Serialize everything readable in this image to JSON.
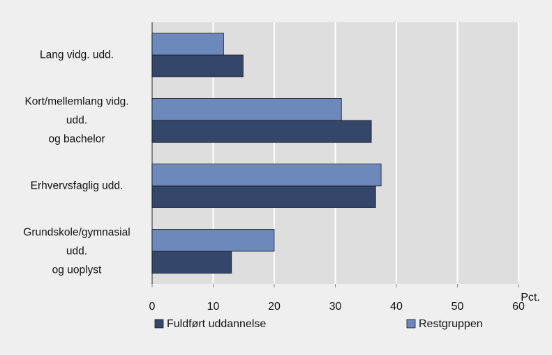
{
  "chart_data": {
    "type": "bar",
    "orientation": "horizontal",
    "categories": [
      "Lang vidg. udd.",
      "Kort/mellemlang vidg.\nudd.\nog bachelor",
      "Erhvervsfaglig udd.",
      "Grundskole/gymnasial\nudd.\nog uoplyst"
    ],
    "series": [
      {
        "name": "Fuldført uddannelse",
        "color": "#34466a",
        "values": [
          14.9,
          35.9,
          36.6,
          13
        ]
      },
      {
        "name": "Restgruppen",
        "color": "#6d88bb",
        "values": [
          11.7,
          31,
          37.5,
          20
        ]
      }
    ],
    "xlabel": "Pct.",
    "xlim": [
      0,
      60
    ],
    "xticks": [
      0,
      10,
      20,
      30,
      40,
      50,
      60
    ],
    "grid": true
  }
}
